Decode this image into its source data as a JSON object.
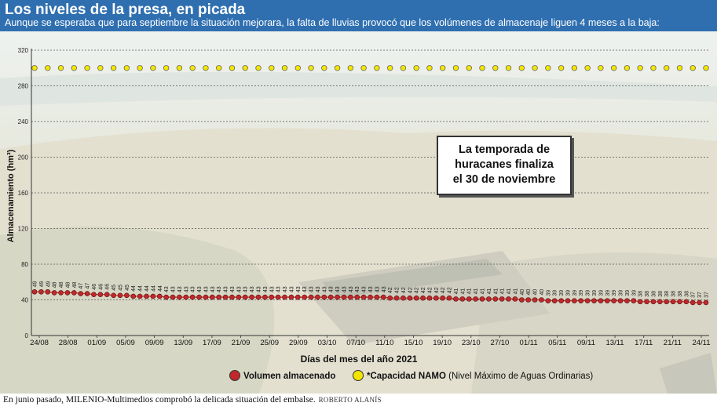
{
  "header": {
    "title": "Los niveles de la presa, en picada",
    "subtitle": "Aunque se esperaba que para septiembre la situación mejorara, la falta de lluvias provocó que los volúmenes de almacenaje liguen 4 meses a la baja:"
  },
  "annotation": {
    "line1": "La temporada de",
    "line2": "huracanes finaliza",
    "line3": "el 30 de noviembre"
  },
  "legend": {
    "volumen": "Volumen almacenado",
    "namo_bold": "*Capacidad NAMO",
    "namo_rest": "(Nivel Máximo de Aguas Ordinarias)"
  },
  "caption": {
    "text": "En junio pasado, MILENIO-Multimedios comprobó la delicada situación del embalse.",
    "credit": "ROBERTO ALANÍS"
  },
  "colors": {
    "header": "#2f6fb0",
    "volumen": "#c0282b",
    "namo": "#f2e600"
  },
  "chart_data": {
    "type": "line",
    "xlabel": "Días del mes del año 2021",
    "ylabel": "Almacenamiento (hm³)",
    "ylim": [
      0,
      320
    ],
    "yticks": [
      40,
      80,
      120,
      160,
      200,
      240,
      280,
      320
    ],
    "xtick_labels": [
      "24/08",
      "28/08",
      "01/09",
      "05/09",
      "09/09",
      "13/09",
      "17/09",
      "21/09",
      "25/09",
      "29/09",
      "03/10",
      "07/10",
      "11/10",
      "15/10",
      "19/10",
      "23/10",
      "27/10",
      "01/11",
      "05/11",
      "09/11",
      "13/11",
      "17/11",
      "21/11",
      "24/11"
    ],
    "grid": true,
    "series": [
      {
        "name": "Volumen almacenado",
        "color": "#c0282b",
        "values": [
          49,
          49,
          49,
          48,
          48,
          48,
          48,
          47,
          47,
          46,
          46,
          46,
          45,
          45,
          45,
          44,
          44,
          44,
          44,
          44,
          43,
          43,
          43,
          43,
          43,
          43,
          43,
          43,
          43,
          43,
          43,
          43,
          43,
          43,
          43,
          43,
          43,
          43,
          43,
          43,
          43,
          43,
          43,
          43,
          43,
          43,
          43,
          43,
          43,
          43,
          43,
          43,
          43,
          43,
          42,
          42,
          42,
          42,
          42,
          42,
          42,
          42,
          42,
          42,
          41,
          41,
          41,
          41,
          41,
          41,
          41,
          41,
          41,
          41,
          40,
          40,
          40,
          40,
          39,
          39,
          39,
          39,
          39,
          39,
          39,
          39,
          39,
          39,
          39,
          39,
          39,
          39,
          38,
          38,
          38,
          38,
          38,
          38,
          38,
          38,
          37,
          37,
          37
        ]
      },
      {
        "name": "*Capacidad NAMO",
        "color": "#f2e600",
        "constant": 300
      }
    ]
  }
}
